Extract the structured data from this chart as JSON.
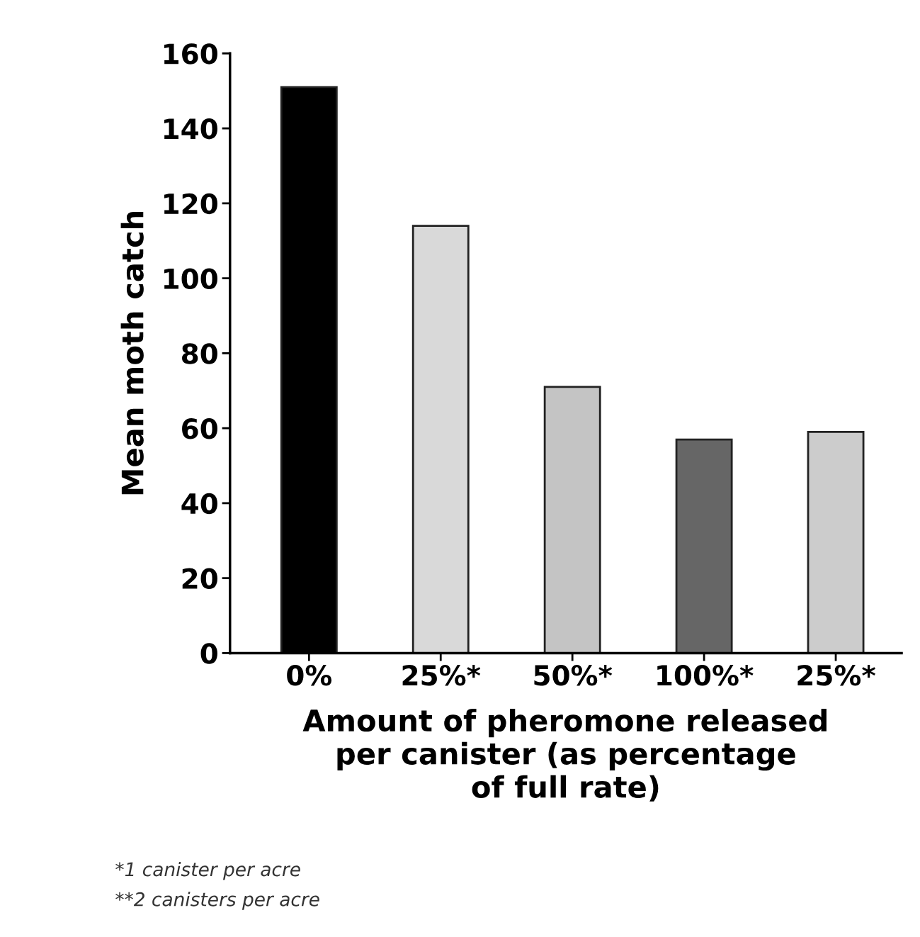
{
  "chart_data": {
    "type": "bar",
    "categories": [
      "0%",
      "25%*",
      "50%*",
      "100%*",
      "25%*"
    ],
    "values": [
      151,
      114,
      71,
      57,
      59
    ],
    "colors": [
      "#000000",
      "#d9d9d9",
      "#c4c4c4",
      "#666666",
      "#cccccc"
    ],
    "xlabel": "Amount of pheromone released\nper canister (as percentage\nof full rate)",
    "ylabel": "Mean moth catch",
    "ylim": [
      0,
      160
    ],
    "yticks": [
      0,
      20,
      40,
      60,
      80,
      100,
      120,
      140,
      160
    ],
    "grid": false,
    "legend": false,
    "annotations": [
      "*1 canister per acre",
      "**2 canisters per acre"
    ]
  }
}
